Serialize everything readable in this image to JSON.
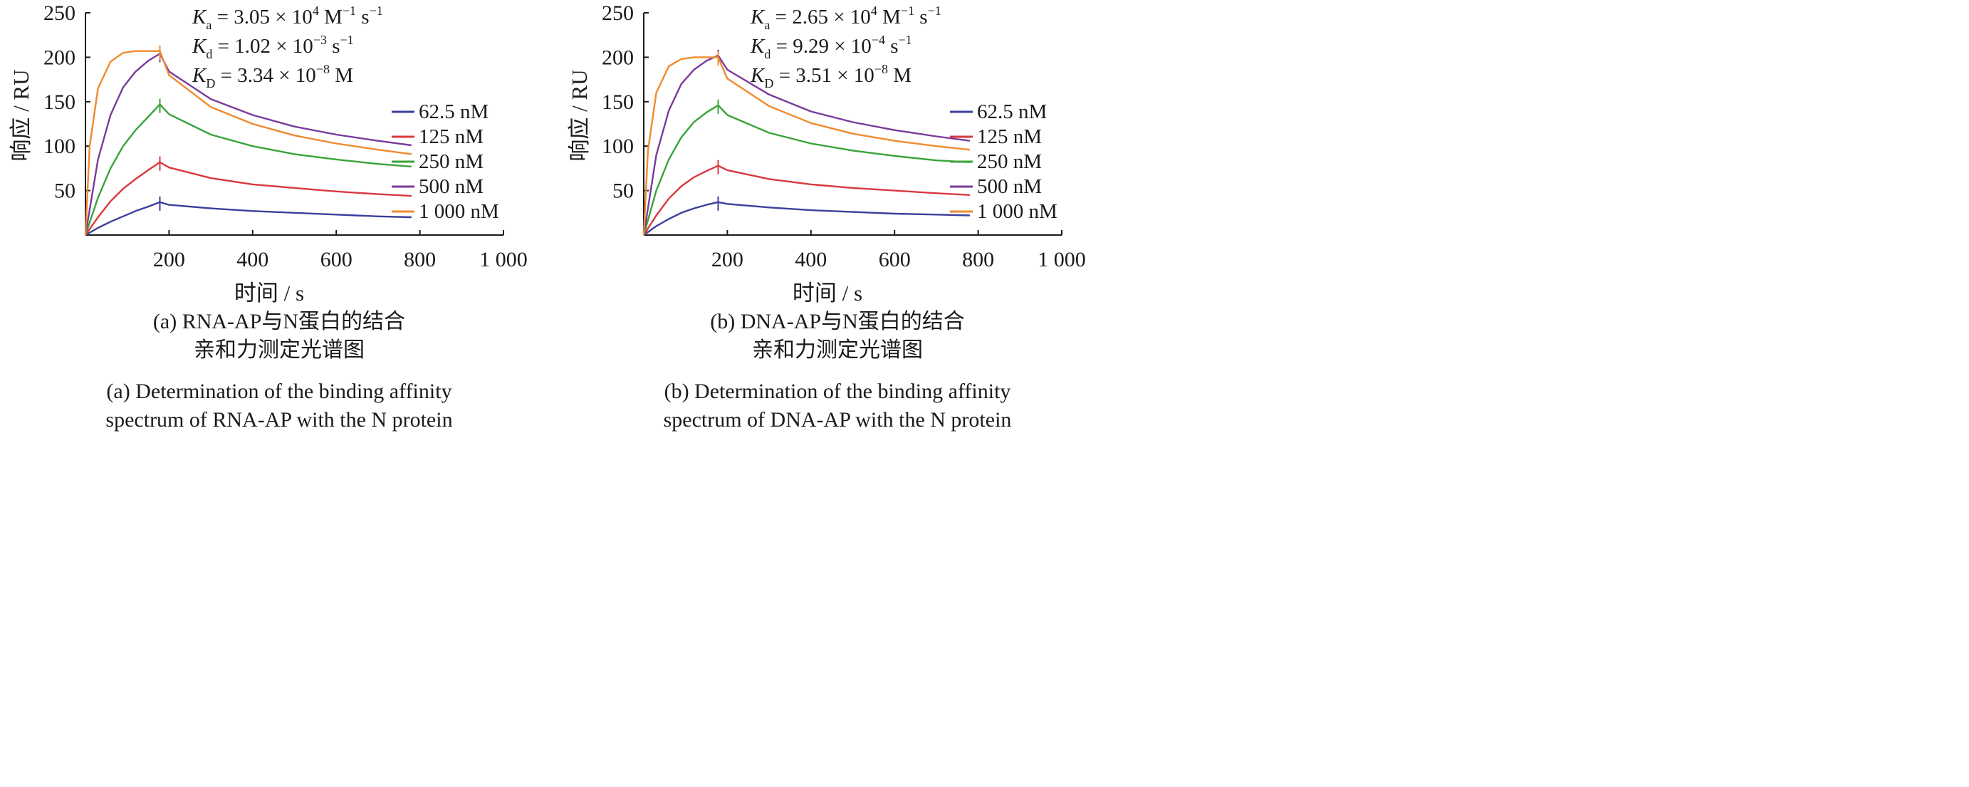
{
  "charts": [
    {
      "id": "a",
      "kinetics": [
        {
          "symbol": "K",
          "sub": "a",
          "eq": " = ",
          "mant": "3.05 × 10",
          "exp": "4",
          "unit": " M",
          "unit_exp": "−1",
          "tail": " s",
          "tail_exp": "−1"
        },
        {
          "symbol": "K",
          "sub": "d",
          "eq": " = ",
          "mant": "1.02 × 10",
          "exp": "−3",
          "unit": " s",
          "unit_exp": "−1",
          "tail": "",
          "tail_exp": ""
        },
        {
          "symbol": "K",
          "sub": "D",
          "eq": " = ",
          "mant": "3.34 × 10",
          "exp": "−8",
          "unit": " M",
          "unit_exp": "",
          "tail": "",
          "tail_exp": ""
        }
      ],
      "caption_cn": [
        "(a) RNA-AP与N蛋白的结合",
        "亲和力测定光谱图"
      ],
      "caption_en": [
        "(a) Determination of the binding affinity",
        "spectrum of RNA-AP with the N protein"
      ]
    },
    {
      "id": "b",
      "kinetics": [
        {
          "symbol": "K",
          "sub": "a",
          "eq": " = ",
          "mant": "2.65 × 10",
          "exp": "4",
          "unit": " M",
          "unit_exp": "−1",
          "tail": " s",
          "tail_exp": "−1"
        },
        {
          "symbol": "K",
          "sub": "d",
          "eq": " = ",
          "mant": "9.29 × 10",
          "exp": "−4",
          "unit": " s",
          "unit_exp": "−1",
          "tail": "",
          "tail_exp": ""
        },
        {
          "symbol": "K",
          "sub": "D",
          "eq": " = ",
          "mant": "3.51 × 10",
          "exp": "−8",
          "unit": " M",
          "unit_exp": "",
          "tail": "",
          "tail_exp": ""
        }
      ],
      "caption_cn": [
        "(b) DNA-AP与N蛋白的结合",
        "亲和力测定光谱图"
      ],
      "caption_en": [
        "(b) Determination of the binding affinity",
        "spectrum of DNA-AP with the N protein"
      ]
    }
  ],
  "chart_data": [
    {
      "type": "line",
      "title": "",
      "xlabel": "时间 / s",
      "ylabel": "响应 / RU",
      "xlim": [
        0,
        1000
      ],
      "ylim": [
        0,
        250
      ],
      "xticks": [
        "200",
        "400",
        "600",
        "800",
        "1 000"
      ],
      "xtick_values": [
        200,
        400,
        600,
        800,
        1000
      ],
      "yticks": [
        "50",
        "100",
        "150",
        "200",
        "250"
      ],
      "ytick_values": [
        50,
        100,
        150,
        200,
        250
      ],
      "legend_position": "right",
      "grid": false,
      "series": [
        {
          "name": "62.5 nM",
          "color": "#3b3f9a",
          "x": [
            0,
            30,
            60,
            90,
            120,
            150,
            178,
            200,
            300,
            400,
            500,
            600,
            700,
            780
          ],
          "y": [
            0,
            8,
            15,
            21,
            27,
            32,
            37,
            34,
            30,
            27,
            25,
            23,
            21,
            20
          ]
        },
        {
          "name": "125 nM",
          "color": "#d9383f",
          "x": [
            0,
            30,
            60,
            90,
            120,
            150,
            178,
            200,
            300,
            400,
            500,
            600,
            700,
            780
          ],
          "y": [
            0,
            20,
            38,
            52,
            63,
            73,
            82,
            76,
            64,
            57,
            53,
            49,
            46,
            44
          ]
        },
        {
          "name": "250 nM",
          "color": "#3aa33a",
          "x": [
            0,
            30,
            60,
            90,
            120,
            150,
            178,
            200,
            300,
            400,
            500,
            600,
            700,
            780
          ],
          "y": [
            0,
            42,
            75,
            100,
            118,
            133,
            147,
            136,
            113,
            100,
            91,
            85,
            80,
            77
          ]
        },
        {
          "name": "500 nM",
          "color": "#7a3a9c",
          "x": [
            0,
            30,
            60,
            90,
            120,
            150,
            178,
            200,
            300,
            400,
            500,
            600,
            700,
            780
          ],
          "y": [
            0,
            85,
            135,
            166,
            184,
            196,
            204,
            184,
            153,
            135,
            122,
            113,
            106,
            101
          ]
        },
        {
          "name": "1 000 nM",
          "color": "#ef8a2e",
          "x": [
            0,
            10,
            30,
            60,
            90,
            120,
            150,
            178,
            200,
            300,
            400,
            500,
            600,
            700,
            780
          ],
          "y": [
            0,
            100,
            165,
            195,
            205,
            207,
            207,
            207,
            180,
            144,
            125,
            112,
            103,
            96,
            91
          ]
        }
      ]
    },
    {
      "type": "line",
      "title": "",
      "xlabel": "时间 / s",
      "ylabel": "响应 / RU",
      "xlim": [
        0,
        1000
      ],
      "ylim": [
        0,
        250
      ],
      "xticks": [
        "200",
        "400",
        "600",
        "800",
        "1 000"
      ],
      "xtick_values": [
        200,
        400,
        600,
        800,
        1000
      ],
      "yticks": [
        "50",
        "100",
        "150",
        "200",
        "250"
      ],
      "ytick_values": [
        50,
        100,
        150,
        200,
        250
      ],
      "legend_position": "right",
      "grid": false,
      "series": [
        {
          "name": "62.5 nM",
          "color": "#3b3f9a",
          "x": [
            0,
            30,
            60,
            90,
            120,
            150,
            178,
            200,
            300,
            400,
            500,
            600,
            700,
            780
          ],
          "y": [
            0,
            10,
            18,
            25,
            30,
            34,
            37,
            35,
            31,
            28,
            26,
            24,
            23,
            22
          ]
        },
        {
          "name": "125 nM",
          "color": "#d9383f",
          "x": [
            0,
            30,
            60,
            90,
            120,
            150,
            178,
            200,
            300,
            400,
            500,
            600,
            700,
            780
          ],
          "y": [
            0,
            22,
            41,
            55,
            65,
            72,
            78,
            73,
            63,
            57,
            53,
            50,
            47,
            45
          ]
        },
        {
          "name": "250 nM",
          "color": "#3aa33a",
          "x": [
            0,
            30,
            60,
            90,
            120,
            150,
            178,
            200,
            300,
            400,
            500,
            600,
            700,
            780
          ],
          "y": [
            0,
            50,
            85,
            110,
            127,
            138,
            146,
            135,
            115,
            103,
            95,
            89,
            84,
            82
          ]
        },
        {
          "name": "500 nM",
          "color": "#7a3a9c",
          "x": [
            0,
            30,
            60,
            90,
            120,
            150,
            178,
            200,
            300,
            400,
            500,
            600,
            700,
            780
          ],
          "y": [
            0,
            90,
            140,
            170,
            186,
            196,
            202,
            186,
            158,
            139,
            127,
            118,
            111,
            106
          ]
        },
        {
          "name": "1 000 nM",
          "color": "#ef8a2e",
          "x": [
            0,
            10,
            30,
            60,
            90,
            120,
            150,
            178,
            200,
            300,
            400,
            500,
            600,
            700,
            780
          ],
          "y": [
            0,
            95,
            160,
            190,
            198,
            200,
            200,
            200,
            176,
            145,
            126,
            114,
            106,
            100,
            96
          ]
        }
      ]
    }
  ]
}
